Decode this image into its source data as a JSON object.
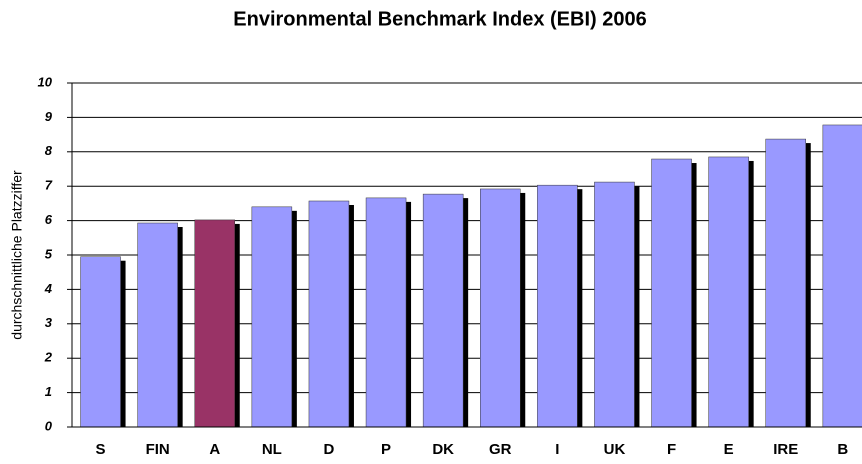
{
  "chart_data": {
    "type": "bar",
    "title": "Environmental Benchmark Index (EBI) 2006",
    "y_label": "durchschnittliche Platzziffer",
    "categories": [
      "S",
      "FIN",
      "A",
      "NL",
      "D",
      "P",
      "DK",
      "GR",
      "I",
      "UK",
      "F",
      "E",
      "IRE",
      "B"
    ],
    "values": [
      4.95,
      5.93,
      6.02,
      6.4,
      6.57,
      6.66,
      6.77,
      6.92,
      7.03,
      7.12,
      7.79,
      7.85,
      8.37,
      8.78
    ],
    "colors": [
      "#9999ff",
      "#9999ff",
      "#993366",
      "#9999ff",
      "#9999ff",
      "#9999ff",
      "#9999ff",
      "#9999ff",
      "#9999ff",
      "#9999ff",
      "#9999ff",
      "#9999ff",
      "#9999ff",
      "#9999ff"
    ],
    "ylim": [
      0,
      10
    ],
    "yticks": [
      0,
      1,
      2,
      3,
      4,
      5,
      6,
      7,
      8,
      9,
      10
    ],
    "grid": true
  }
}
